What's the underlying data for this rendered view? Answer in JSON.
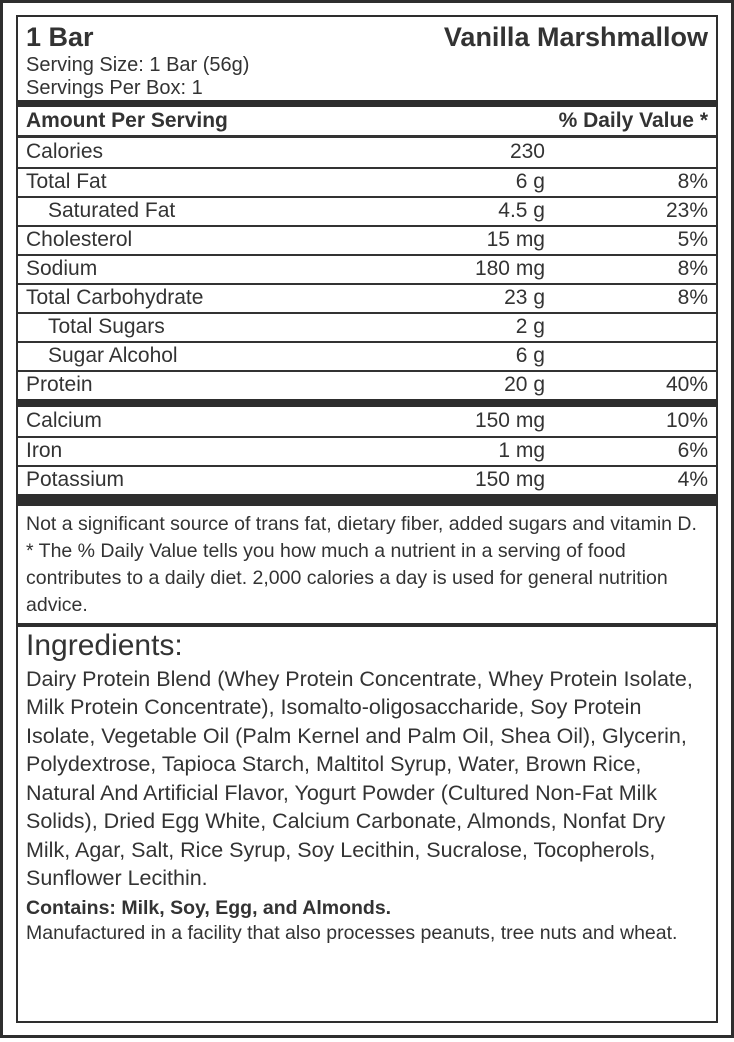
{
  "colors": {
    "text": "#333333",
    "rule": "#333333",
    "bar": "#2e2e2e",
    "background": "#ffffff"
  },
  "header": {
    "quantity": "1 Bar",
    "flavor": "Vanilla Marshmallow",
    "serving_size": "Serving Size: 1 Bar (56g)",
    "servings_per_box": "Servings Per Box: 1"
  },
  "table": {
    "amount_header": "Amount Per Serving",
    "dv_header": "% Daily Value *",
    "rows": [
      {
        "name": "Calories",
        "amount": "230",
        "dv": "",
        "indent": false
      },
      {
        "name": "Total Fat",
        "amount": "6 g",
        "dv": "8%",
        "indent": false
      },
      {
        "name": "Saturated Fat",
        "amount": "4.5 g",
        "dv": "23%",
        "indent": true
      },
      {
        "name": "Cholesterol",
        "amount": "15 mg",
        "dv": "5%",
        "indent": false
      },
      {
        "name": "Sodium",
        "amount": "180 mg",
        "dv": "8%",
        "indent": false
      },
      {
        "name": "Total Carbohydrate",
        "amount": "23 g",
        "dv": "8%",
        "indent": false
      },
      {
        "name": "Total Sugars",
        "amount": "2 g",
        "dv": "",
        "indent": true
      },
      {
        "name": "Sugar Alcohol",
        "amount": "6 g",
        "dv": "",
        "indent": true
      },
      {
        "name": "Protein",
        "amount": "20 g",
        "dv": "40%",
        "indent": false
      }
    ],
    "mineral_rows": [
      {
        "name": "Calcium",
        "amount": "150 mg",
        "dv": "10%",
        "indent": false
      },
      {
        "name": "Iron",
        "amount": "1 mg",
        "dv": "6%",
        "indent": false
      },
      {
        "name": "Potassium",
        "amount": "150 mg",
        "dv": "4%",
        "indent": false
      }
    ]
  },
  "footnotes": {
    "not_significant": "Not a significant source of trans fat, dietary fiber, added sugars and vitamin D.",
    "daily_value_note": "* The % Daily Value tells you how much a nutrient in a serving of food contributes to a daily diet. 2,000 calories a day is used for general nutrition advice."
  },
  "ingredients": {
    "heading": "Ingredients:",
    "text": "Dairy Protein Blend (Whey Protein Concentrate, Whey Protein Isolate, Milk Protein Concentrate), Isomalto-oligosaccharide, Soy Protein Isolate, Vegetable Oil (Palm Kernel and Palm Oil, Shea Oil), Glycerin, Polydextrose, Tapioca Starch, Maltitol Syrup, Water, Brown Rice, Natural And Artificial Flavor, Yogurt Powder (Cultured Non-Fat Milk Solids), Dried Egg White, Calcium Carbonate, Almonds, Nonfat Dry Milk, Agar, Salt, Rice Syrup, Soy Lecithin, Sucralose, Tocopherols, Sunflower Lecithin.",
    "contains": "Contains: Milk, Soy, Egg, and Almonds.",
    "manufactured": "Manufactured in a facility that also processes peanuts, tree nuts and wheat."
  }
}
